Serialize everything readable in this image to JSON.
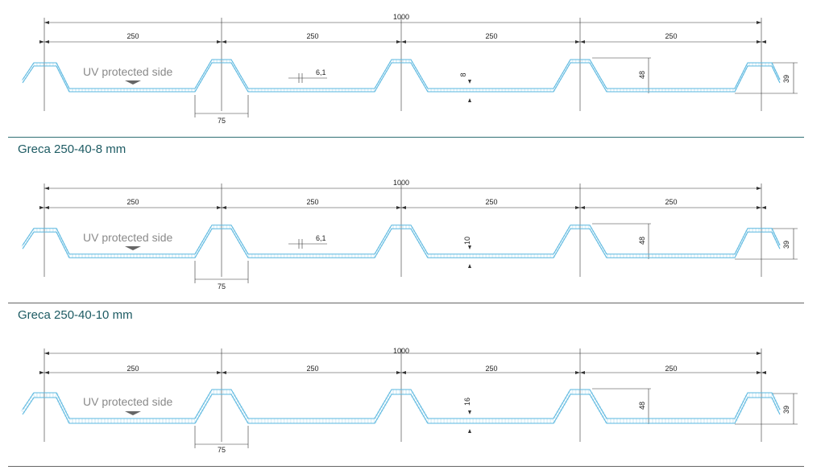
{
  "sections": [
    {
      "total_width": "1000",
      "pitch_labels": [
        "250",
        "250",
        "250",
        "250"
      ],
      "uv_label": "UV protected side",
      "rib_base": "75",
      "core_label": "6,1",
      "thickness_label": "8",
      "rib_height": "48",
      "edge_height": "39",
      "caption": "Greca 250-40-8 mm",
      "thickness_mm": 8
    },
    {
      "total_width": "1000",
      "pitch_labels": [
        "250",
        "250",
        "250",
        "250"
      ],
      "uv_label": "UV protected side",
      "rib_base": "75",
      "core_label": "6,1",
      "thickness_label": "10",
      "rib_height": "48",
      "edge_height": "39",
      "caption": "Greca 250-40-10 mm",
      "thickness_mm": 10
    },
    {
      "total_width": "1000",
      "pitch_labels": [
        "250",
        "250",
        "250",
        "250"
      ],
      "uv_label": "UV protected side",
      "rib_base": "75",
      "core_label": "",
      "thickness_label": "16",
      "rib_height": "48",
      "edge_height": "39",
      "caption": "",
      "thickness_mm": 16
    }
  ],
  "colors": {
    "profile": "#5bb8e0",
    "dimension": "#333333",
    "caption": "#1d5b63",
    "divider": "#2f6f74",
    "uv_arrow": "#666666"
  }
}
